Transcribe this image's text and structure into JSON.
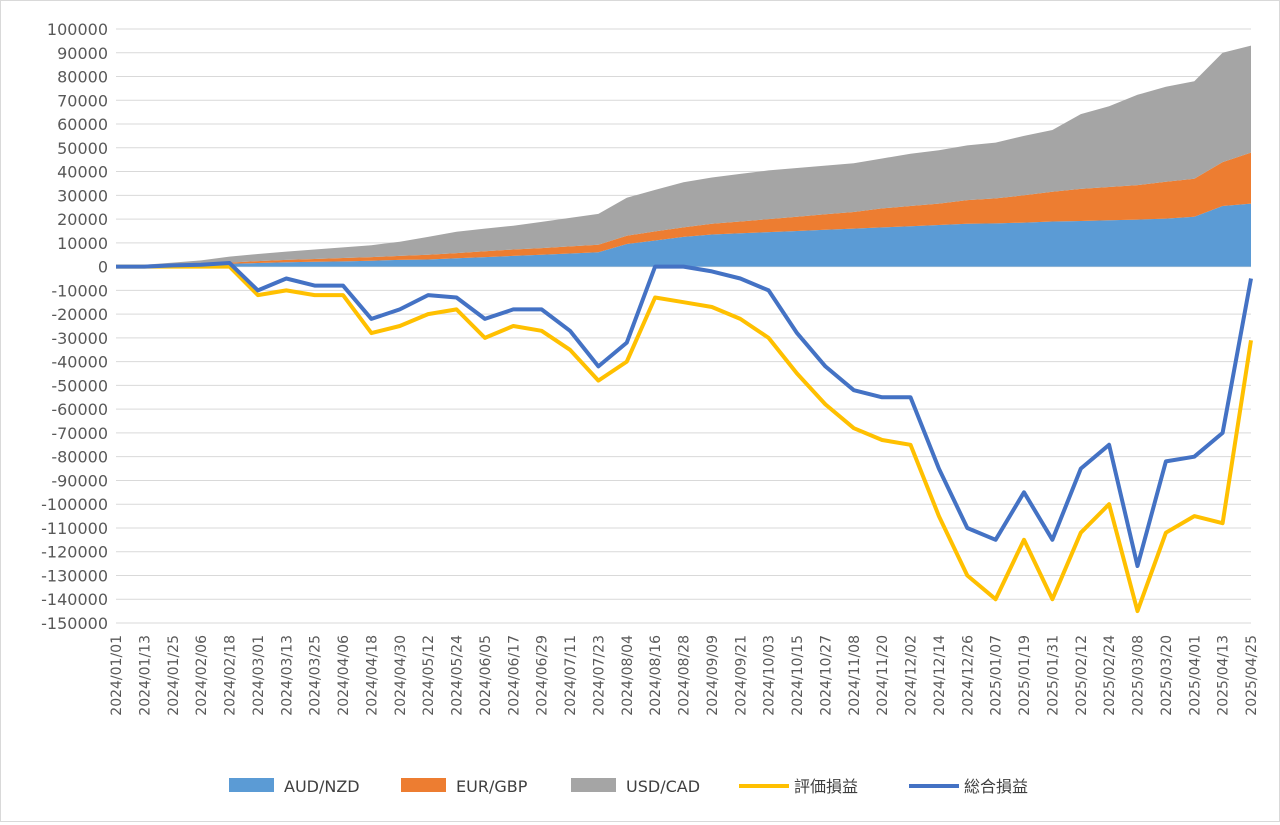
{
  "chart_data": {
    "type": "area",
    "title": "",
    "xlabel": "",
    "ylabel": "",
    "ylim": [
      -150000,
      100000
    ],
    "y_ticks": [
      100000,
      90000,
      80000,
      70000,
      60000,
      50000,
      40000,
      30000,
      20000,
      10000,
      0,
      -10000,
      -20000,
      -30000,
      -40000,
      -50000,
      -60000,
      -70000,
      -80000,
      -90000,
      -100000,
      -110000,
      -120000,
      -130000,
      -140000,
      -150000
    ],
    "x_tick_labels": [
      "2024/01/01",
      "2024/01/13",
      "2024/01/25",
      "2024/02/06",
      "2024/02/18",
      "2024/03/01",
      "2024/03/13",
      "2024/03/25",
      "2024/04/06",
      "2024/04/18",
      "2024/04/30",
      "2024/05/12",
      "2024/05/24",
      "2024/06/05",
      "2024/06/17",
      "2024/06/29",
      "2024/07/11",
      "2024/07/23",
      "2024/08/04",
      "2024/08/16",
      "2024/08/28",
      "2024/09/09",
      "2024/09/21",
      "2024/10/03",
      "2024/10/15",
      "2024/10/27",
      "2024/11/08",
      "2024/11/20",
      "2024/12/02",
      "2024/12/14",
      "2024/12/26",
      "2025/01/07",
      "2025/01/19",
      "2025/01/31",
      "2025/02/12",
      "2025/02/24",
      "2025/03/08",
      "2025/03/20",
      "2025/04/01",
      "2025/04/13",
      "2025/04/25"
    ],
    "grid": true,
    "legend_position": "bottom",
    "x": [
      "2024/01/01",
      "2024/01/13",
      "2024/01/25",
      "2024/02/06",
      "2024/02/18",
      "2024/03/01",
      "2024/03/13",
      "2024/03/25",
      "2024/04/06",
      "2024/04/18",
      "2024/04/30",
      "2024/05/12",
      "2024/05/24",
      "2024/06/05",
      "2024/06/17",
      "2024/06/29",
      "2024/07/11",
      "2024/07/23",
      "2024/08/04",
      "2024/08/16",
      "2024/08/28",
      "2024/09/09",
      "2024/09/21",
      "2024/10/03",
      "2024/10/15",
      "2024/10/27",
      "2024/11/08",
      "2024/11/20",
      "2024/12/02",
      "2024/12/14",
      "2024/12/26",
      "2025/01/07",
      "2025/01/19",
      "2025/01/31",
      "2025/02/12",
      "2025/02/24",
      "2025/03/08",
      "2025/03/20",
      "2025/04/01",
      "2025/04/13",
      "2025/04/25"
    ],
    "series": [
      {
        "name": "AUD/NZD",
        "kind": "stacked-area",
        "color": "#5b9bd5",
        "values": [
          0,
          200,
          500,
          800,
          1200,
          1500,
          1800,
          2000,
          2200,
          2500,
          2800,
          3000,
          3500,
          4000,
          4500,
          5000,
          5500,
          6000,
          9500,
          11000,
          12500,
          13500,
          14000,
          14500,
          15000,
          15500,
          16000,
          16500,
          17000,
          17500,
          18000,
          18200,
          18500,
          19000,
          19200,
          19500,
          19800,
          20200,
          21000,
          25500,
          26500
        ]
      },
      {
        "name": "EUR/GBP",
        "kind": "stacked-area",
        "color": "#ed7d31",
        "values": [
          0,
          100,
          200,
          300,
          500,
          800,
          1000,
          1200,
          1400,
          1500,
          1700,
          2000,
          2200,
          2500,
          2700,
          2800,
          3000,
          3200,
          3500,
          3800,
          4000,
          4500,
          5000,
          5500,
          6000,
          6500,
          7000,
          8000,
          8500,
          9000,
          10000,
          10500,
          11500,
          12500,
          13500,
          14000,
          14500,
          15500,
          16000,
          18500,
          21500
        ]
      },
      {
        "name": "USD/CAD",
        "kind": "stacked-area",
        "color": "#a5a5a5",
        "values": [
          0,
          500,
          1000,
          1500,
          2500,
          3000,
          3500,
          4000,
          4500,
          5000,
          6000,
          7500,
          9000,
          9500,
          10000,
          11000,
          12000,
          13000,
          16000,
          17500,
          19000,
          19500,
          20000,
          20500,
          20500,
          20500,
          20500,
          21000,
          22000,
          22500,
          23000,
          23500,
          25000,
          26000,
          31500,
          34000,
          38000,
          40000,
          41000,
          46000,
          45000
        ]
      },
      {
        "name": "評価損益",
        "kind": "line",
        "color": "#ffc000",
        "values": [
          0,
          0,
          0,
          0,
          0,
          -12000,
          -10000,
          -12000,
          -12000,
          -28000,
          -25000,
          -20000,
          -18000,
          -30000,
          -25000,
          -27000,
          -35000,
          -48000,
          -40000,
          -13000,
          -15000,
          -17000,
          -22000,
          -30000,
          -45000,
          -58000,
          -68000,
          -73000,
          -75000,
          -105000,
          -130000,
          -140000,
          -115000,
          -140000,
          -112000,
          -100000,
          -145000,
          -112000,
          -105000,
          -108000,
          -31000
        ]
      },
      {
        "name": "総合損益",
        "kind": "line",
        "color": "#4472c4",
        "values": [
          0,
          0,
          500,
          800,
          1500,
          -10000,
          -5000,
          -8000,
          -8000,
          -22000,
          -18000,
          -12000,
          -13000,
          -22000,
          -18000,
          -18000,
          -27000,
          -42000,
          -32000,
          0,
          0,
          -2000,
          -5000,
          -10000,
          -28000,
          -42000,
          -52000,
          -55000,
          -55000,
          -85000,
          -110000,
          -115000,
          -95000,
          -115000,
          -85000,
          -75000,
          -126000,
          -82000,
          -80000,
          -70000,
          -5000
        ]
      }
    ]
  }
}
